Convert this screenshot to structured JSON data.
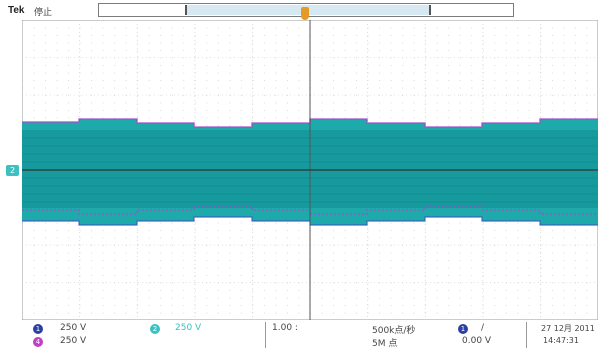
{
  "header": {
    "brand": "Tek",
    "run_state": "停止"
  },
  "channels": [
    {
      "id": "1",
      "scale": "250 V",
      "color": "#2c3fa3"
    },
    {
      "id": "2",
      "scale": "250 V",
      "color": "#3cc0c2"
    },
    {
      "id": "4",
      "scale": "250 V",
      "color": "#c040c0"
    }
  ],
  "ch2_marker": "2",
  "status": {
    "math_scale": "1.00 :",
    "sample_rate": "500k点/秒",
    "record_length": "5M 点",
    "trigger_channel": "1",
    "trigger_slope": "/",
    "trigger_level": "0.00 V",
    "date": "27 12月 2011",
    "time": "14:47:31"
  },
  "colors": {
    "ch1": "#2c3fa3",
    "ch2": "#3cc0c2",
    "ch4": "#c040c0",
    "trigger": "#e59a25"
  }
}
